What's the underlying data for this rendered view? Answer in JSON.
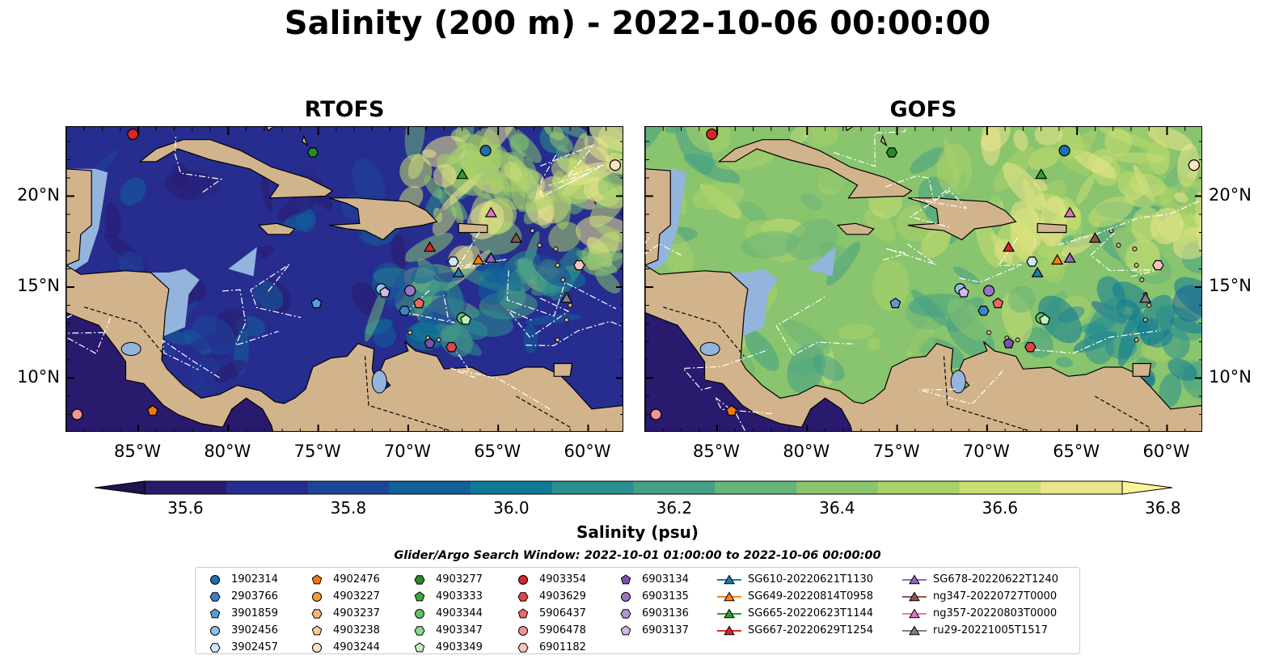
{
  "title": "Salinity (200 m) - 2022-10-06 00:00:00",
  "panels": [
    {
      "title": "RTOFS",
      "palette": "rtofs"
    },
    {
      "title": "GOFS",
      "palette": "gofs"
    }
  ],
  "lon_ticks": [
    "85°W",
    "80°W",
    "75°W",
    "70°W",
    "65°W",
    "60°W"
  ],
  "lat_ticks": [
    "20°N",
    "15°N",
    "10°N"
  ],
  "colorbar": {
    "title": "Salinity (psu)",
    "ticks": [
      "35.6",
      "35.8",
      "36.0",
      "36.2",
      "36.4",
      "36.6",
      "36.8"
    ],
    "colors": [
      "#2a1a6e",
      "#262d8e",
      "#1d4699",
      "#12619a",
      "#0f7a96",
      "#2a8f8e",
      "#45a185",
      "#68b57a",
      "#89c46e",
      "#a9d267",
      "#c8df72",
      "#ede58c"
    ]
  },
  "search_window": "Glider/Argo Search Window: 2022-10-01 01:00:00 to 2022-10-06 00:00:00",
  "legend": [
    [
      {
        "label": "1902314",
        "shape": "circle",
        "color": "#1f6fb0"
      },
      {
        "label": "2903766",
        "shape": "hexagon",
        "color": "#3c83c4"
      },
      {
        "label": "3901859",
        "shape": "pentagon",
        "color": "#5b9bd5"
      },
      {
        "label": "3902456",
        "shape": "circle",
        "color": "#8fc0e6"
      },
      {
        "label": "3902457",
        "shape": "hexagon",
        "color": "#cfe6f7"
      }
    ],
    [
      {
        "label": "4902476",
        "shape": "pentagon",
        "color": "#f07a10"
      },
      {
        "label": "4903227",
        "shape": "circle",
        "color": "#f79a3d"
      },
      {
        "label": "4903237",
        "shape": "hexagon",
        "color": "#f9b575"
      },
      {
        "label": "4903238",
        "shape": "pentagon",
        "color": "#fbcb99"
      },
      {
        "label": "4903244",
        "shape": "circle",
        "color": "#fde2c4"
      }
    ],
    [
      {
        "label": "4903277",
        "shape": "hexagon",
        "color": "#2a8a2a"
      },
      {
        "label": "4903333",
        "shape": "pentagon",
        "color": "#3fa53f"
      },
      {
        "label": "4903344",
        "shape": "circle",
        "color": "#62c262"
      },
      {
        "label": "4903347",
        "shape": "hexagon",
        "color": "#8ad88a"
      },
      {
        "label": "4903349",
        "shape": "pentagon",
        "color": "#c2eebd"
      }
    ],
    [
      {
        "label": "4903354",
        "shape": "circle",
        "color": "#d62728"
      },
      {
        "label": "4903629",
        "shape": "hexagon",
        "color": "#e04545"
      },
      {
        "label": "5906437",
        "shape": "pentagon",
        "color": "#ea6a6a"
      },
      {
        "label": "5906478",
        "shape": "circle",
        "color": "#f29494"
      },
      {
        "label": "6901182",
        "shape": "hexagon",
        "color": "#f8c3c3"
      }
    ],
    [
      {
        "label": "6903134",
        "shape": "pentagon",
        "color": "#7a52ad"
      },
      {
        "label": "6903135",
        "shape": "circle",
        "color": "#9a72c8"
      },
      {
        "label": "6903136",
        "shape": "hexagon",
        "color": "#b592da"
      },
      {
        "label": "6903137",
        "shape": "pentagon",
        "color": "#d2b8ec"
      }
    ],
    [
      {
        "label": "SG610-20220621T1130",
        "shape": "triangle",
        "color": "#1f77b4",
        "line": true
      },
      {
        "label": "SG649-20220814T0958",
        "shape": "triangle",
        "color": "#ff7f0e",
        "line": true
      },
      {
        "label": "SG665-20220623T1144",
        "shape": "triangle",
        "color": "#2ca02c",
        "line": true
      },
      {
        "label": "SG667-20220629T1254",
        "shape": "triangle",
        "color": "#d62728",
        "line": true
      }
    ],
    [
      {
        "label": "SG678-20220622T1240",
        "shape": "triangle",
        "color": "#9467bd",
        "line": true
      },
      {
        "label": "ng347-20220727T0000",
        "shape": "triangle",
        "color": "#8c564b",
        "line": true
      },
      {
        "label": "ng357-20220803T0000",
        "shape": "triangle",
        "color": "#e377c2",
        "line": true
      },
      {
        "label": "ru29-20221005T1517",
        "shape": "triangle",
        "color": "#7f7f7f",
        "line": true
      }
    ]
  ],
  "markers": [
    {
      "id": "1902314",
      "lon": -65.7,
      "lat": 22.5
    },
    {
      "id": "2903766",
      "lon": -70.2,
      "lat": 13.7
    },
    {
      "id": "3901859",
      "lon": -75.1,
      "lat": 14.1
    },
    {
      "id": "3902456",
      "lon": -71.5,
      "lat": 14.9
    },
    {
      "id": "3902457",
      "lon": -67.5,
      "lat": 16.4
    },
    {
      "id": "4902476",
      "lon": -84.2,
      "lat": 8.2
    },
    {
      "id": "4903244",
      "lon": -58.5,
      "lat": 21.7
    },
    {
      "id": "4903277",
      "lon": -75.3,
      "lat": 22.4
    },
    {
      "id": "4903344",
      "lon": -67.0,
      "lat": 13.3
    },
    {
      "id": "4903349",
      "lon": -66.8,
      "lat": 13.2
    },
    {
      "id": "4903354",
      "lon": -85.3,
      "lat": 23.4
    },
    {
      "id": "4903629",
      "lon": -67.6,
      "lat": 11.7
    },
    {
      "id": "5906437",
      "lon": -69.4,
      "lat": 14.1
    },
    {
      "id": "5906478",
      "lon": -88.4,
      "lat": 8.0
    },
    {
      "id": "6901182",
      "lon": -60.5,
      "lat": 16.2
    },
    {
      "id": "6903134",
      "lon": -68.8,
      "lat": 11.9
    },
    {
      "id": "6903135",
      "lon": -69.9,
      "lat": 14.8
    },
    {
      "id": "6903137",
      "lon": -71.3,
      "lat": 14.7
    },
    {
      "id": "SG610-20220621T1130",
      "lon": -67.2,
      "lat": 15.8
    },
    {
      "id": "SG649-20220814T0958",
      "lon": -66.1,
      "lat": 16.5
    },
    {
      "id": "SG665-20220623T1144",
      "lon": -67.0,
      "lat": 21.2
    },
    {
      "id": "SG667-20220629T1254",
      "lon": -68.8,
      "lat": 17.2
    },
    {
      "id": "SG678-20220622T1240",
      "lon": -65.4,
      "lat": 16.6
    },
    {
      "id": "ng347-20220727T0000",
      "lon": -64.0,
      "lat": 17.7
    },
    {
      "id": "ng357-20220803T0000",
      "lon": -65.4,
      "lat": 19.1
    },
    {
      "id": "ru29-20221005T1517",
      "lon": -61.2,
      "lat": 14.4
    }
  ]
}
